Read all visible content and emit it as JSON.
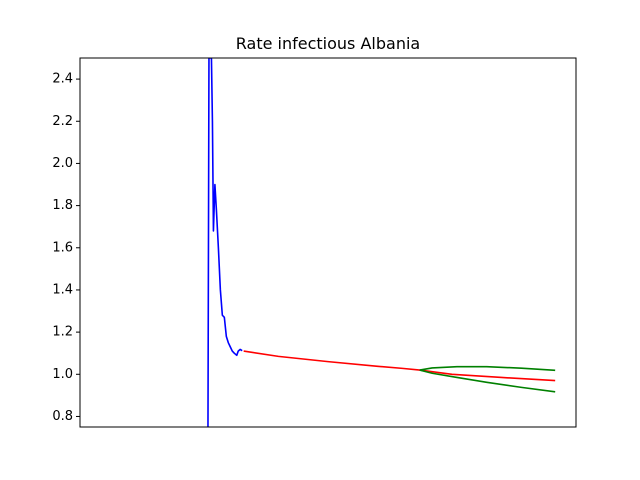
{
  "chart_data": {
    "type": "line",
    "title": "Rate infectious Albania",
    "xlabel": "",
    "ylabel": "",
    "xlim": [
      0,
      100
    ],
    "ylim": [
      0.75,
      2.5
    ],
    "xticks_visible": false,
    "yticks": [
      "0.8",
      "1.0",
      "1.2",
      "1.4",
      "1.6",
      "1.8",
      "2.0",
      "2.2",
      "2.4"
    ],
    "ytick_values": [
      0.8,
      1.0,
      1.2,
      1.4,
      1.6,
      1.8,
      2.0,
      2.2,
      2.4
    ],
    "grid": false,
    "legend": "none",
    "series": [
      {
        "color": "#0000ff",
        "points": [
          [
            25.8,
            0.75
          ],
          [
            26.0,
            2.5
          ],
          [
            26.5,
            2.5
          ],
          [
            26.7,
            2.2
          ],
          [
            26.9,
            1.68
          ],
          [
            27.2,
            1.9
          ],
          [
            27.5,
            1.78
          ],
          [
            27.9,
            1.6
          ],
          [
            28.3,
            1.4
          ],
          [
            28.7,
            1.28
          ],
          [
            29.1,
            1.27
          ],
          [
            29.5,
            1.18
          ],
          [
            29.9,
            1.15
          ],
          [
            30.3,
            1.13
          ],
          [
            30.7,
            1.11
          ],
          [
            31.1,
            1.1
          ],
          [
            31.6,
            1.09
          ],
          [
            31.9,
            1.11
          ],
          [
            32.3,
            1.118
          ],
          [
            32.7,
            1.112
          ]
        ]
      },
      {
        "color": "#ff0000",
        "points": [
          [
            33.0,
            1.11
          ],
          [
            40.0,
            1.085
          ],
          [
            50.0,
            1.06
          ],
          [
            60.0,
            1.038
          ],
          [
            65.0,
            1.028
          ],
          [
            68.5,
            1.02
          ],
          [
            75.0,
            1.0
          ],
          [
            85.0,
            0.985
          ],
          [
            95.8,
            0.97
          ]
        ]
      },
      {
        "color": "#008000",
        "points": [
          [
            68.5,
            1.02
          ],
          [
            71.0,
            1.03
          ],
          [
            76.0,
            1.036
          ],
          [
            82.0,
            1.036
          ],
          [
            89.0,
            1.029
          ],
          [
            95.8,
            1.019
          ]
        ]
      },
      {
        "color": "#008000",
        "points": [
          [
            68.5,
            1.02
          ],
          [
            71.0,
            1.005
          ],
          [
            76.0,
            0.985
          ],
          [
            82.0,
            0.962
          ],
          [
            89.0,
            0.938
          ],
          [
            95.8,
            0.917
          ]
        ]
      }
    ]
  }
}
